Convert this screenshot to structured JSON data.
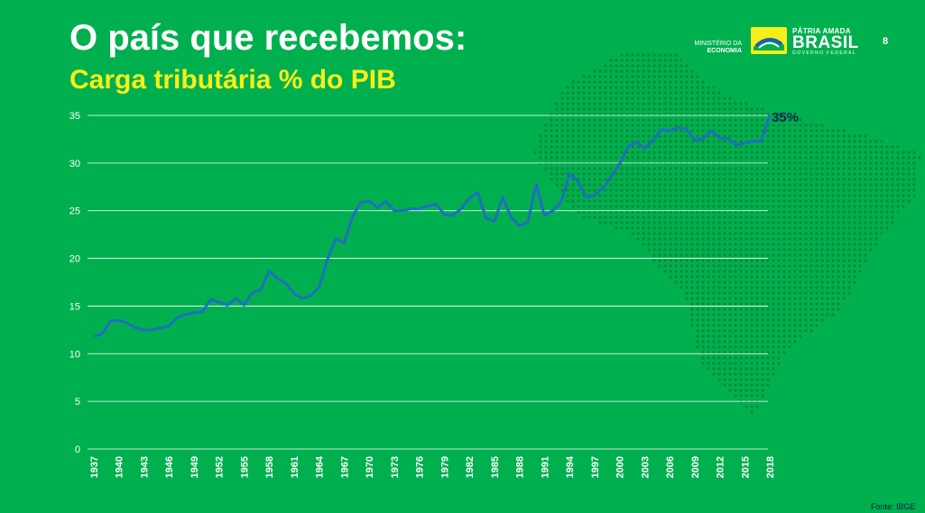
{
  "header": {
    "title": "O país que recebemos:",
    "subtitle": "Carga tributária % do PIB",
    "ministry_line1": "MINISTÉRIO DA",
    "ministry_line2": "ECONOMIA",
    "brand_line1": "PÁTRIA AMADA",
    "brand_line2": "BRASIL",
    "brand_line3": "GOVERNO FEDERAL",
    "page_number": "8"
  },
  "footer": {
    "source": "Fonte: IBGE"
  },
  "colors": {
    "background": "#00b04f",
    "line": "#1f6fc0",
    "title": "#ffffff",
    "subtitle": "#f5ef1a",
    "map_dots": "#0a8a3a",
    "annotation": "#10284e"
  },
  "chart_data": {
    "type": "line",
    "title": "",
    "xlabel": "",
    "ylabel": "",
    "ylim": [
      0,
      35
    ],
    "yticks": [
      0,
      5,
      10,
      15,
      20,
      25,
      30,
      35
    ],
    "grid": true,
    "x_tick_labels": [
      "1937",
      "1940",
      "1943",
      "1946",
      "1949",
      "1952",
      "1955",
      "1958",
      "1961",
      "1964",
      "1967",
      "1970",
      "1973",
      "1976",
      "1979",
      "1982",
      "1985",
      "1988",
      "1991",
      "1994",
      "1997",
      "2000",
      "2003",
      "2006",
      "2009",
      "2012",
      "2015",
      "2018"
    ],
    "x": [
      1937,
      1938,
      1939,
      1940,
      1941,
      1942,
      1943,
      1944,
      1945,
      1946,
      1947,
      1948,
      1949,
      1950,
      1951,
      1952,
      1953,
      1954,
      1955,
      1956,
      1957,
      1958,
      1959,
      1960,
      1961,
      1962,
      1963,
      1964,
      1965,
      1966,
      1967,
      1968,
      1969,
      1970,
      1971,
      1972,
      1973,
      1974,
      1975,
      1976,
      1977,
      1978,
      1979,
      1980,
      1981,
      1982,
      1983,
      1984,
      1985,
      1986,
      1987,
      1988,
      1989,
      1990,
      1991,
      1992,
      1993,
      1994,
      1995,
      1996,
      1997,
      1998,
      1999,
      2000,
      2001,
      2002,
      2003,
      2004,
      2005,
      2006,
      2007,
      2008,
      2009,
      2010,
      2011,
      2012,
      2013,
      2014,
      2015,
      2016,
      2017,
      2018
    ],
    "series": [
      {
        "values": [
          11.8,
          12.1,
          13.4,
          13.5,
          13.2,
          12.7,
          12.5,
          12.5,
          12.7,
          12.9,
          13.8,
          14.1,
          14.3,
          14.4,
          15.7,
          15.4,
          15.1,
          15.8,
          15.1,
          16.4,
          16.7,
          18.7,
          17.9,
          17.4,
          16.3,
          15.8,
          16.1,
          17.0,
          19.9,
          22.1,
          21.6,
          24.4,
          25.9,
          26.0,
          25.3,
          26.0,
          25.0,
          25.0,
          25.2,
          25.2,
          25.5,
          25.7,
          24.6,
          24.5,
          25.2,
          26.3,
          26.9,
          24.2,
          23.9,
          26.4,
          24.3,
          23.4,
          23.8,
          27.8,
          24.5,
          25.0,
          25.9,
          28.9,
          28.1,
          26.4,
          26.6,
          27.4,
          28.6,
          29.9,
          31.7,
          32.2,
          31.5,
          32.4,
          33.5,
          33.4,
          33.7,
          33.6,
          32.4,
          32.5,
          33.4,
          32.6,
          32.6,
          31.9,
          32.1,
          32.3,
          32.3,
          35.0
        ]
      }
    ],
    "annotations": [
      {
        "x": 2018,
        "y": 35,
        "text": "35%"
      }
    ]
  }
}
